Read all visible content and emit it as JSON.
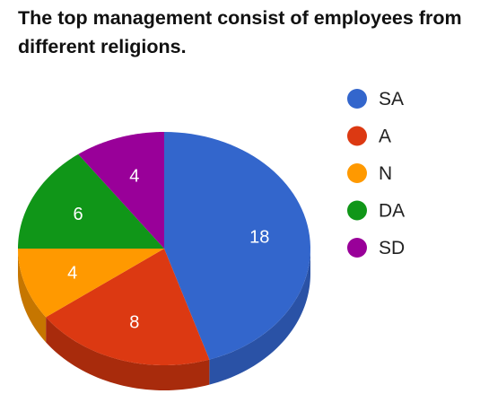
{
  "chart_data": {
    "type": "pie",
    "title": "The top management consist of employees from different religions.",
    "categories": [
      "SA",
      "A",
      "N",
      "DA",
      "SD"
    ],
    "values": [
      18,
      8,
      4,
      6,
      4
    ],
    "colors": [
      "#3366cc",
      "#dc3912",
      "#ff9900",
      "#109618",
      "#990099"
    ],
    "side_colors": [
      "#2a52a6",
      "#a82b0c",
      "#c67600",
      "#0b7012",
      "#730073"
    ],
    "legend_position": "right",
    "style": "3d"
  }
}
